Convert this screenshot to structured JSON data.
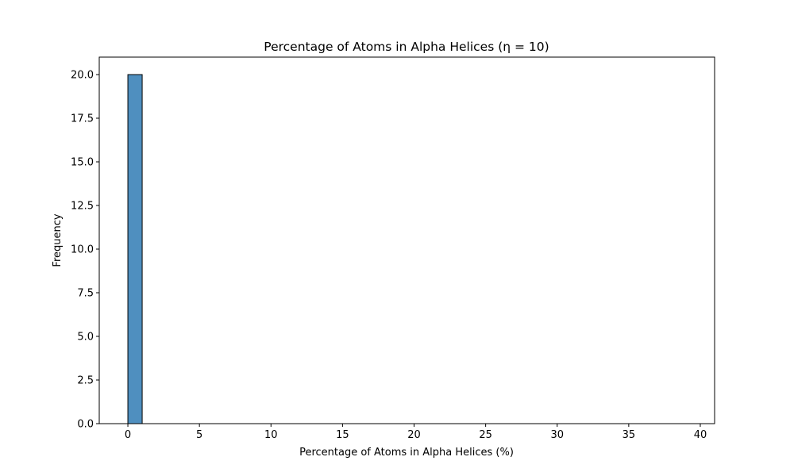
{
  "chart_data": {
    "type": "bar",
    "title": "Percentage of Atoms in Alpha Helices (η = 10)",
    "xlabel": "Percentage of Atoms in Alpha Helices (%)",
    "ylabel": "Frequency",
    "xlim": [
      -2,
      41
    ],
    "ylim": [
      0,
      21
    ],
    "xticks": [
      0,
      5,
      10,
      15,
      20,
      25,
      30,
      35,
      40
    ],
    "xtick_labels": [
      "0",
      "5",
      "10",
      "15",
      "20",
      "25",
      "30",
      "35",
      "40"
    ],
    "yticks": [
      0,
      2.5,
      5,
      7.5,
      10,
      12.5,
      15,
      17.5,
      20
    ],
    "ytick_labels": [
      "0.0",
      "2.5",
      "5.0",
      "7.5",
      "10.0",
      "12.5",
      "15.0",
      "17.5",
      "20.0"
    ],
    "bins": {
      "start": 0,
      "end": 39,
      "width": 1
    },
    "bars": [
      {
        "x0": 0,
        "x1": 1,
        "count": 20
      }
    ],
    "grid": false,
    "colors": {
      "bar_fill": "#4f8fbf",
      "edge": "#000000"
    }
  }
}
